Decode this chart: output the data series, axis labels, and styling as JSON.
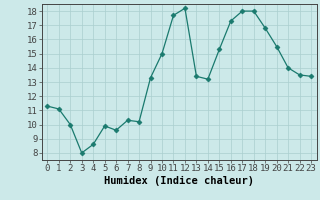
{
  "x": [
    0,
    1,
    2,
    3,
    4,
    5,
    6,
    7,
    8,
    9,
    10,
    11,
    12,
    13,
    14,
    15,
    16,
    17,
    18,
    19,
    20,
    21,
    22,
    23
  ],
  "y": [
    11.3,
    11.1,
    10.0,
    8.0,
    8.6,
    9.9,
    9.6,
    10.3,
    10.2,
    13.3,
    15.0,
    17.7,
    18.2,
    13.4,
    13.2,
    15.3,
    17.3,
    18.0,
    18.0,
    16.8,
    15.5,
    14.0,
    13.5,
    13.4
  ],
  "xlabel": "Humidex (Indice chaleur)",
  "xlim": [
    -0.5,
    23.5
  ],
  "ylim": [
    7.5,
    18.5
  ],
  "yticks": [
    8,
    9,
    10,
    11,
    12,
    13,
    14,
    15,
    16,
    17,
    18
  ],
  "xticks": [
    0,
    1,
    2,
    3,
    4,
    5,
    6,
    7,
    8,
    9,
    10,
    11,
    12,
    13,
    14,
    15,
    16,
    17,
    18,
    19,
    20,
    21,
    22,
    23
  ],
  "line_color": "#1a7a6e",
  "marker": "D",
  "marker_size": 2.5,
  "bg_color": "#cce9e9",
  "grid_color": "#aacfcf",
  "axis_color": "#444444",
  "xlabel_fontsize": 7.5,
  "tick_fontsize": 6.5
}
